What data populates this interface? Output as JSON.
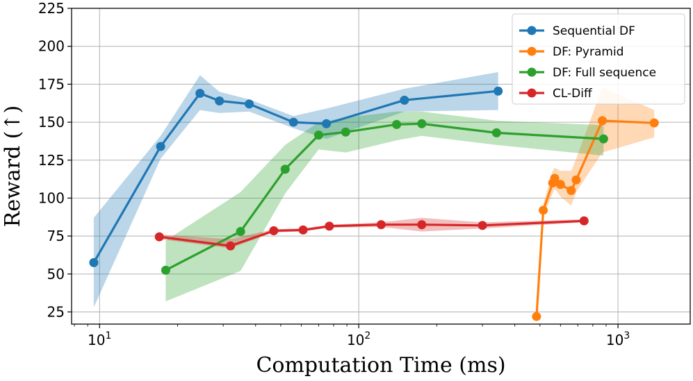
{
  "chart_data": {
    "type": "line",
    "title": "",
    "xlabel": "Computation Time (ms)",
    "ylabel": "Reward (↑)",
    "xscale": "log",
    "xlim": [
      7.8,
      1900
    ],
    "ylim": [
      17,
      225
    ],
    "xticks": [
      {
        "value": 10,
        "label": "10",
        "sup": "1"
      },
      {
        "value": 100,
        "label": "10",
        "sup": "2"
      },
      {
        "value": 1000,
        "label": "10",
        "sup": "3"
      }
    ],
    "yticks": [
      25,
      50,
      75,
      100,
      125,
      150,
      175,
      200,
      225
    ],
    "grid": true,
    "legend_position": "top-right",
    "series": [
      {
        "name": "Sequential DF",
        "color": "#1f77b4",
        "x": [
          9.5,
          17.2,
          24.4,
          29.0,
          37.8,
          56.0,
          75.0,
          150.0,
          345.0
        ],
        "y": [
          57.5,
          134.0,
          169.0,
          164.0,
          162.0,
          150.0,
          149.0,
          164.5,
          170.5
        ],
        "band": {
          "x": [
            9.5,
            17.2,
            24.4,
            29.0,
            37.8,
            56.0,
            75.0,
            150.0,
            345.0
          ],
          "upper": [
            87,
            141,
            181,
            170,
            165,
            154,
            159,
            172,
            183
          ],
          "lower": [
            28,
            126,
            158,
            156,
            157,
            146,
            139,
            157,
            158
          ]
        }
      },
      {
        "name": "DF: Pyramid",
        "color": "#ff7f0e",
        "x": [
          485,
          515,
          560,
          570,
          600,
          660,
          690,
          870,
          1380
        ],
        "y": [
          22,
          92,
          110,
          113,
          109,
          105,
          112,
          151,
          149.5
        ],
        "band": {
          "x": [
            485,
            515,
            560,
            570,
            600,
            660,
            690,
            870,
            1380
          ],
          "upper": [
            22,
            96,
            118,
            120,
            118,
            118,
            126,
            173,
            158
          ],
          "lower": [
            22,
            88,
            103,
            106,
            101,
            95,
            104,
            130,
            140
          ]
        }
      },
      {
        "name": "DF: Full sequence",
        "color": "#2ca02c",
        "x": [
          18.0,
          35.0,
          52.0,
          70.0,
          89.0,
          140.0,
          175.0,
          340.0,
          880.0
        ],
        "y": [
          52.5,
          78.0,
          119.0,
          141.5,
          143.5,
          148.5,
          149.0,
          143.0,
          139.0
        ],
        "band": {
          "x": [
            18.0,
            35.0,
            52.0,
            70.0,
            89.0,
            140.0,
            175.0,
            340.0,
            880.0
          ],
          "upper": [
            72,
            104,
            135,
            150,
            153,
            157,
            157,
            151,
            148
          ],
          "lower": [
            32,
            52,
            103,
            132,
            130,
            138,
            141,
            135,
            128
          ]
        }
      },
      {
        "name": "CL-Diff",
        "color": "#d62728",
        "x": [
          17.0,
          32.0,
          47.0,
          61.0,
          77.0,
          122.0,
          175.0,
          300.0,
          740.0
        ],
        "y": [
          74.5,
          68.5,
          78.5,
          79.0,
          81.5,
          82.5,
          82.5,
          82.0,
          85.0
        ],
        "band": {
          "x": [
            17.0,
            32.0,
            47.0,
            61.0,
            77.0,
            122.0,
            175.0,
            300.0,
            740.0
          ],
          "upper": [
            76,
            73,
            79.5,
            80,
            82.5,
            84,
            87,
            84,
            86
          ],
          "lower": [
            73,
            67,
            77.5,
            78,
            80.5,
            81,
            78,
            80,
            84
          ]
        }
      }
    ]
  }
}
